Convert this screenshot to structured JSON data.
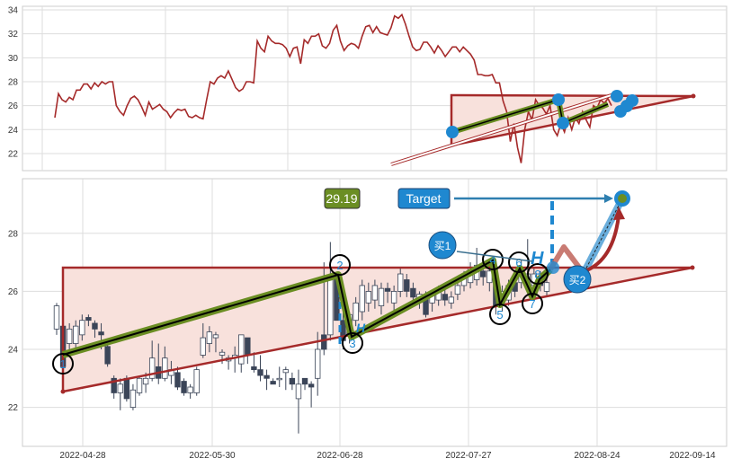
{
  "colors": {
    "price_line": "#a52a2a",
    "triangle": "#a52a2a",
    "triangle_fill": "#f8e1dc",
    "pattern_line": "#6b8e23",
    "accent_blue": "#1f88d0",
    "candle_down": "#3b4558"
  },
  "chart_data": [
    {
      "type": "line",
      "panel": "top",
      "ylim": [
        20.5,
        34.3
      ],
      "y_ticks": [
        "34",
        "32",
        "30",
        "28",
        "26",
        "24",
        "22"
      ],
      "grid": true,
      "values": [
        25.0,
        27.0,
        26.5,
        26.3,
        26.7,
        26.5,
        27.3,
        27.3,
        27.8,
        27.8,
        27.4,
        27.9,
        27.6,
        28.0,
        27.8,
        28.0,
        28.0,
        26.0,
        25.5,
        25.2,
        26.0,
        26.6,
        26.8,
        26.5,
        25.9,
        25.2,
        26.3,
        25.7,
        25.9,
        26.1,
        25.7,
        25.5,
        25.0,
        25.4,
        25.7,
        25.6,
        25.7,
        25.1,
        25.0,
        25.2,
        25.0,
        24.9,
        26.5,
        28.0,
        27.8,
        28.3,
        28.5,
        28.3,
        28.9,
        28.2,
        27.5,
        27.2,
        27.4,
        28.0,
        28.0,
        27.9,
        31.4,
        30.8,
        30.5,
        31.8,
        31.4,
        31.2,
        31.2,
        31.1,
        30.8,
        30.1,
        30.8,
        30.9,
        29.5,
        31.5,
        31.2,
        31.8,
        31.8,
        32.0,
        31.0,
        30.8,
        31.2,
        32.3,
        32.7,
        31.4,
        30.6,
        31.0,
        31.2,
        31.1,
        30.8,
        31.8,
        32.6,
        32.7,
        32.1,
        32.6,
        32.1,
        32.0,
        31.9,
        32.5,
        33.5,
        33.3,
        33.6,
        32.8,
        31.8,
        30.9,
        30.6,
        30.7,
        31.3,
        31.3,
        30.9,
        30.4,
        31.0,
        30.6,
        30.1,
        30.5,
        30.9,
        30.9,
        30.5,
        30.9,
        30.6,
        30.3,
        29.8,
        28.6,
        28.6,
        28.5,
        28.5,
        28.6,
        27.9,
        27.9,
        26.4,
        25.5,
        23.0,
        24.5,
        22.5,
        21.2,
        24.0,
        25.5,
        24.8,
        26.5,
        26.0,
        25.8,
        25.3,
        26.0,
        24.0,
        23.5,
        24.5,
        23.8,
        25.0,
        24.0,
        25.0,
        24.5,
        25.5,
        24.8,
        24.2,
        26.0,
        25.8,
        26.5,
        26.2,
        26.6,
        26.0
      ]
    },
    {
      "type": "candlestick",
      "panel": "bottom",
      "ylim": [
        20.7,
        30.0
      ],
      "y_ticks": [
        "28",
        "26",
        "24",
        "22"
      ],
      "x_ticks": [
        "2022-04-28",
        "2022-05-30",
        "2022-06-28",
        "2022-07-27",
        "2022-08-24",
        "2022-09-14"
      ],
      "grid": true,
      "ohlc": [
        [
          24.7,
          25.6,
          24.5,
          25.5
        ],
        [
          24.8,
          24.9,
          23.3,
          23.4
        ],
        [
          24.2,
          24.9,
          24.0,
          24.7
        ],
        [
          24.2,
          25.0,
          24.0,
          24.8
        ],
        [
          24.5,
          25.2,
          24.3,
          25.0
        ],
        [
          25.1,
          25.2,
          24.8,
          25.0
        ],
        [
          24.9,
          25.0,
          24.4,
          24.7
        ],
        [
          24.6,
          24.9,
          24.0,
          24.5
        ],
        [
          24.1,
          24.2,
          23.4,
          23.5
        ],
        [
          23.0,
          23.1,
          22.3,
          22.5
        ],
        [
          22.5,
          23.0,
          21.9,
          22.8
        ],
        [
          23.0,
          23.1,
          22.2,
          22.3
        ],
        [
          22.0,
          22.8,
          21.9,
          22.6
        ],
        [
          22.5,
          23.1,
          22.4,
          23.0
        ],
        [
          22.8,
          23.2,
          22.5,
          23.0
        ],
        [
          23.0,
          24.3,
          22.9,
          23.7
        ],
        [
          23.4,
          24.2,
          22.8,
          23.0
        ],
        [
          23.0,
          24.1,
          22.9,
          23.7
        ],
        [
          23.1,
          23.6,
          22.8,
          23.3
        ],
        [
          23.2,
          23.4,
          22.6,
          22.7
        ],
        [
          22.9,
          23.0,
          22.4,
          22.5
        ],
        [
          22.5,
          22.8,
          22.3,
          22.7
        ],
        [
          22.5,
          23.4,
          22.4,
          23.3
        ],
        [
          23.8,
          24.9,
          23.7,
          24.4
        ],
        [
          24.2,
          24.8,
          23.9,
          24.6
        ],
        [
          24.4,
          24.6,
          23.9,
          24.5
        ],
        [
          23.8,
          24.0,
          23.5,
          23.9
        ],
        [
          23.6,
          23.8,
          23.3,
          23.7
        ],
        [
          23.7,
          24.1,
          23.2,
          23.8
        ],
        [
          23.5,
          24.5,
          23.2,
          24.5
        ],
        [
          24.4,
          24.4,
          23.5,
          23.8
        ],
        [
          23.4,
          23.9,
          23.2,
          23.3
        ],
        [
          23.3,
          23.8,
          22.9,
          23.1
        ],
        [
          23.1,
          23.3,
          22.6,
          23.0
        ],
        [
          22.9,
          23.0,
          22.8,
          22.8
        ],
        [
          23.0,
          23.4,
          22.7,
          23.0
        ],
        [
          23.2,
          23.4,
          22.6,
          23.3
        ],
        [
          23.0,
          23.2,
          22.6,
          22.8
        ],
        [
          22.3,
          23.3,
          21.1,
          22.8
        ],
        [
          23.0,
          23.0,
          22.6,
          22.8
        ],
        [
          22.8,
          22.9,
          22.0,
          22.7
        ],
        [
          23.0,
          24.6,
          22.4,
          24.0
        ],
        [
          24.5,
          27.0,
          23.8,
          24.0
        ],
        [
          24.5,
          27.7,
          24.3,
          26.5
        ],
        [
          26.5,
          26.6,
          25.0,
          25.0
        ],
        [
          25.0,
          25.3,
          24.0,
          24.3
        ],
        [
          24.5,
          25.3,
          24.2,
          25.2
        ],
        [
          25.0,
          25.8,
          24.8,
          25.6
        ],
        [
          25.3,
          26.4,
          25.0,
          26.2
        ],
        [
          25.6,
          26.3,
          25.3,
          26.0
        ],
        [
          25.7,
          26.4,
          25.4,
          26.2
        ],
        [
          25.5,
          26.3,
          25.2,
          26.1
        ],
        [
          26.1,
          26.3,
          25.6,
          26.0
        ],
        [
          25.6,
          26.2,
          25.3,
          26.0
        ],
        [
          26.0,
          26.8,
          25.8,
          26.6
        ],
        [
          26.4,
          26.6,
          25.8,
          26.0
        ],
        [
          26.1,
          26.3,
          25.5,
          25.8
        ],
        [
          25.7,
          26.0,
          25.4,
          25.9
        ],
        [
          25.8,
          26.0,
          25.1,
          25.2
        ],
        [
          25.6,
          26.0,
          25.3,
          25.9
        ],
        [
          25.7,
          26.2,
          25.5,
          26.0
        ],
        [
          25.9,
          26.1,
          25.5,
          25.7
        ],
        [
          25.6,
          26.0,
          25.4,
          25.8
        ],
        [
          25.9,
          26.4,
          25.7,
          26.2
        ],
        [
          26.2,
          26.7,
          26.0,
          26.5
        ],
        [
          26.3,
          27.0,
          26.1,
          26.8
        ],
        [
          26.4,
          27.5,
          26.2,
          26.9
        ],
        [
          26.7,
          26.9,
          26.2,
          26.5
        ],
        [
          26.3,
          26.9,
          26.0,
          26.7
        ],
        [
          26.4,
          26.6,
          25.2,
          25.5
        ],
        [
          25.5,
          26.2,
          25.3,
          26.0
        ],
        [
          25.7,
          26.4,
          25.5,
          26.2
        ],
        [
          26.3,
          26.5,
          25.8,
          26.0
        ],
        [
          26.3,
          27.1,
          26.1,
          26.6
        ],
        [
          26.2,
          27.8,
          26.0,
          26.6
        ],
        [
          26.2,
          26.8,
          25.9,
          26.6
        ],
        [
          26.5,
          26.7,
          26.0,
          26.2
        ],
        [
          26.0,
          26.5,
          25.8,
          26.3
        ]
      ],
      "annotations": {
        "pattern_points": [
          "1",
          "2",
          "3",
          "4",
          "5",
          "6",
          "7",
          "8"
        ],
        "pattern_markers": [
          "H",
          "H"
        ],
        "target_label": "Target",
        "target_price": "29.19",
        "buy1": "买1",
        "buy2": "买2"
      }
    }
  ]
}
